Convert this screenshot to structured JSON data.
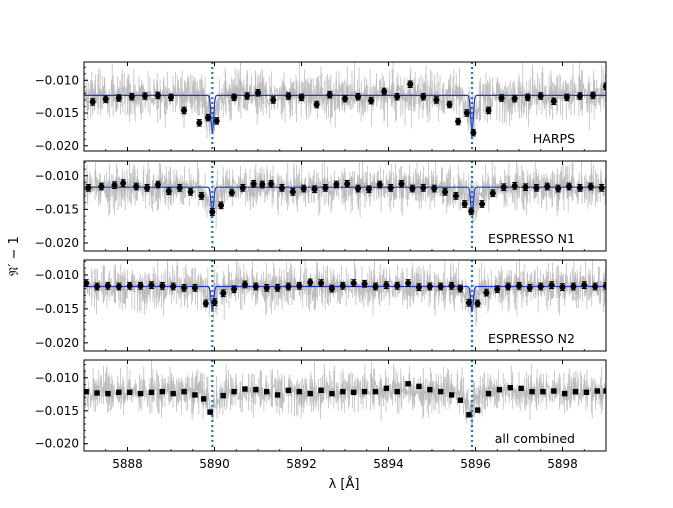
{
  "chart_data": {
    "type": "line",
    "colors": {
      "noisy_data": "#b8b8b8",
      "binned_points": "#000000",
      "model_line": "#1f35d6",
      "line_markers": "#1f77b4",
      "axes": "#000000"
    },
    "xlabel": "λ [Å]",
    "ylabel": "𝔑′ − 1",
    "xlim": [
      5887.0,
      5899.0
    ],
    "x_ticks": [
      "5888",
      "5890",
      "5892",
      "5894",
      "5896",
      "5898"
    ],
    "x_tick_values": [
      5888,
      5890,
      5892,
      5894,
      5896,
      5898
    ],
    "vertical_lines_x": [
      5889.95,
      5895.92
    ],
    "shared_x": true,
    "panels": [
      {
        "label": "HARPS",
        "ylim": [
          -0.0208,
          -0.0072
        ],
        "y_ticks": [
          "−0.010",
          "−0.015",
          "−0.020"
        ],
        "y_tick_values": [
          -0.01,
          -0.015,
          -0.02
        ],
        "continuum": -0.0123,
        "line_depth": 0.0056,
        "marker": "circle",
        "errorbars": true,
        "has_model": true,
        "binned_points": [
          [
            5887.2,
            -0.0133
          ],
          [
            5887.5,
            -0.0129
          ],
          [
            5887.8,
            -0.0127
          ],
          [
            5888.1,
            -0.0125
          ],
          [
            5888.4,
            -0.0124
          ],
          [
            5888.7,
            -0.0123
          ],
          [
            5889.0,
            -0.0126
          ],
          [
            5889.3,
            -0.0146
          ],
          [
            5889.65,
            -0.0165
          ],
          [
            5889.85,
            -0.0157
          ],
          [
            5890.05,
            -0.0162
          ],
          [
            5890.45,
            -0.0126
          ],
          [
            5890.75,
            -0.0124
          ],
          [
            5891.0,
            -0.0119
          ],
          [
            5891.35,
            -0.013
          ],
          [
            5891.7,
            -0.0124
          ],
          [
            5892.0,
            -0.0126
          ],
          [
            5892.35,
            -0.0137
          ],
          [
            5892.65,
            -0.0122
          ],
          [
            5893.0,
            -0.0128
          ],
          [
            5893.3,
            -0.0125
          ],
          [
            5893.6,
            -0.0131
          ],
          [
            5893.9,
            -0.0117
          ],
          [
            5894.2,
            -0.0125
          ],
          [
            5894.5,
            -0.0106
          ],
          [
            5894.8,
            -0.0125
          ],
          [
            5895.1,
            -0.013
          ],
          [
            5895.4,
            -0.0137
          ],
          [
            5895.6,
            -0.0163
          ],
          [
            5895.8,
            -0.015
          ],
          [
            5895.95,
            -0.018
          ],
          [
            5896.3,
            -0.0146
          ],
          [
            5896.6,
            -0.0127
          ],
          [
            5896.9,
            -0.0128
          ],
          [
            5897.2,
            -0.0126
          ],
          [
            5897.5,
            -0.0124
          ],
          [
            5897.8,
            -0.0132
          ],
          [
            5898.1,
            -0.0126
          ],
          [
            5898.4,
            -0.0124
          ],
          [
            5898.7,
            -0.0123
          ],
          [
            5899.0,
            -0.0109
          ]
        ]
      },
      {
        "label": "ESPRESSO N1",
        "ylim": [
          -0.0212,
          -0.0078
        ],
        "y_ticks": [
          "−0.010",
          "−0.015",
          "−0.020"
        ],
        "y_tick_values": [
          -0.01,
          -0.015,
          -0.02
        ],
        "continuum": -0.0117,
        "line_depth": 0.004,
        "marker": "circle",
        "errorbars": true,
        "has_model": true,
        "binned_points": [
          [
            5887.1,
            -0.0118
          ],
          [
            5887.4,
            -0.0116
          ],
          [
            5887.7,
            -0.0114
          ],
          [
            5887.9,
            -0.0111
          ],
          [
            5888.2,
            -0.0116
          ],
          [
            5888.45,
            -0.0118
          ],
          [
            5888.7,
            -0.0113
          ],
          [
            5888.95,
            -0.0123
          ],
          [
            5889.2,
            -0.0118
          ],
          [
            5889.45,
            -0.0124
          ],
          [
            5889.7,
            -0.013
          ],
          [
            5889.95,
            -0.0154
          ],
          [
            5890.15,
            -0.0144
          ],
          [
            5890.4,
            -0.0125
          ],
          [
            5890.65,
            -0.0118
          ],
          [
            5890.9,
            -0.0112
          ],
          [
            5891.1,
            -0.0113
          ],
          [
            5891.3,
            -0.0112
          ],
          [
            5891.55,
            -0.0118
          ],
          [
            5891.8,
            -0.0124
          ],
          [
            5892.05,
            -0.0119
          ],
          [
            5892.3,
            -0.012
          ],
          [
            5892.55,
            -0.0118
          ],
          [
            5892.8,
            -0.0113
          ],
          [
            5893.05,
            -0.0112
          ],
          [
            5893.3,
            -0.0119
          ],
          [
            5893.55,
            -0.012
          ],
          [
            5893.8,
            -0.0113
          ],
          [
            5894.05,
            -0.0118
          ],
          [
            5894.3,
            -0.0112
          ],
          [
            5894.55,
            -0.0119
          ],
          [
            5894.8,
            -0.0118
          ],
          [
            5895.05,
            -0.0119
          ],
          [
            5895.3,
            -0.0124
          ],
          [
            5895.55,
            -0.013
          ],
          [
            5895.75,
            -0.0142
          ],
          [
            5895.9,
            -0.0153
          ],
          [
            5896.15,
            -0.0142
          ],
          [
            5896.4,
            -0.0126
          ],
          [
            5896.65,
            -0.0117
          ],
          [
            5896.9,
            -0.0115
          ],
          [
            5897.15,
            -0.0117
          ],
          [
            5897.4,
            -0.0118
          ],
          [
            5897.65,
            -0.0116
          ],
          [
            5897.9,
            -0.0119
          ],
          [
            5898.15,
            -0.0116
          ],
          [
            5898.4,
            -0.0118
          ],
          [
            5898.65,
            -0.0116
          ],
          [
            5898.9,
            -0.0118
          ]
        ]
      },
      {
        "label": "ESPRESSO N2",
        "ylim": [
          -0.0212,
          -0.0078
        ],
        "y_ticks": [
          "−0.010",
          "−0.015",
          "−0.020"
        ],
        "y_tick_values": [
          -0.01,
          -0.015,
          -0.02
        ],
        "continuum": -0.0117,
        "line_depth": 0.0036,
        "marker": "circle",
        "errorbars": true,
        "has_model": true,
        "binned_points": [
          [
            5887.05,
            -0.0112
          ],
          [
            5887.3,
            -0.0117
          ],
          [
            5887.55,
            -0.0116
          ],
          [
            5887.8,
            -0.0117
          ],
          [
            5888.05,
            -0.0116
          ],
          [
            5888.3,
            -0.0116
          ],
          [
            5888.55,
            -0.0115
          ],
          [
            5888.8,
            -0.0116
          ],
          [
            5889.05,
            -0.0117
          ],
          [
            5889.3,
            -0.0119
          ],
          [
            5889.55,
            -0.0119
          ],
          [
            5889.8,
            -0.0142
          ],
          [
            5890.0,
            -0.014
          ],
          [
            5890.2,
            -0.0127
          ],
          [
            5890.45,
            -0.0121
          ],
          [
            5890.7,
            -0.0114
          ],
          [
            5890.95,
            -0.0117
          ],
          [
            5891.2,
            -0.0119
          ],
          [
            5891.45,
            -0.0119
          ],
          [
            5891.7,
            -0.0117
          ],
          [
            5891.95,
            -0.0116
          ],
          [
            5892.2,
            -0.0111
          ],
          [
            5892.45,
            -0.0112
          ],
          [
            5892.7,
            -0.012
          ],
          [
            5892.95,
            -0.0116
          ],
          [
            5893.2,
            -0.0112
          ],
          [
            5893.45,
            -0.0113
          ],
          [
            5893.7,
            -0.0117
          ],
          [
            5893.95,
            -0.0115
          ],
          [
            5894.2,
            -0.0116
          ],
          [
            5894.45,
            -0.0112
          ],
          [
            5894.7,
            -0.0118
          ],
          [
            5894.95,
            -0.0117
          ],
          [
            5895.2,
            -0.0117
          ],
          [
            5895.45,
            -0.0116
          ],
          [
            5895.65,
            -0.012
          ],
          [
            5895.85,
            -0.0141
          ],
          [
            5896.05,
            -0.0142
          ],
          [
            5896.25,
            -0.0126
          ],
          [
            5896.5,
            -0.0121
          ],
          [
            5896.75,
            -0.0117
          ],
          [
            5897.0,
            -0.0116
          ],
          [
            5897.25,
            -0.0119
          ],
          [
            5897.5,
            -0.0117
          ],
          [
            5897.75,
            -0.0115
          ],
          [
            5898.0,
            -0.0118
          ],
          [
            5898.25,
            -0.0117
          ],
          [
            5898.5,
            -0.0115
          ],
          [
            5898.75,
            -0.0117
          ],
          [
            5899.0,
            -0.0116
          ]
        ]
      },
      {
        "label": "all combined",
        "ylim": [
          -0.0211,
          -0.0073
        ],
        "y_ticks": [
          "−0.010",
          "−0.015",
          "−0.020"
        ],
        "y_tick_values": [
          -0.01,
          -0.015,
          -0.02
        ],
        "continuum": -0.012,
        "line_depth": 0,
        "marker": "square",
        "errorbars": false,
        "has_model": false,
        "binned_points": [
          [
            5887.05,
            -0.0121
          ],
          [
            5887.3,
            -0.0123
          ],
          [
            5887.55,
            -0.0124
          ],
          [
            5887.8,
            -0.0122
          ],
          [
            5888.05,
            -0.0122
          ],
          [
            5888.3,
            -0.0124
          ],
          [
            5888.55,
            -0.0122
          ],
          [
            5888.8,
            -0.0121
          ],
          [
            5889.05,
            -0.0124
          ],
          [
            5889.3,
            -0.0121
          ],
          [
            5889.55,
            -0.0126
          ],
          [
            5889.75,
            -0.0132
          ],
          [
            5889.9,
            -0.0152
          ],
          [
            5890.2,
            -0.0127
          ],
          [
            5890.45,
            -0.0121
          ],
          [
            5890.7,
            -0.0117
          ],
          [
            5890.95,
            -0.0118
          ],
          [
            5891.2,
            -0.0121
          ],
          [
            5891.45,
            -0.0126
          ],
          [
            5891.7,
            -0.0119
          ],
          [
            5891.95,
            -0.0121
          ],
          [
            5892.2,
            -0.0124
          ],
          [
            5892.45,
            -0.0119
          ],
          [
            5892.7,
            -0.0124
          ],
          [
            5892.95,
            -0.0121
          ],
          [
            5893.2,
            -0.0122
          ],
          [
            5893.45,
            -0.0121
          ],
          [
            5893.7,
            -0.0121
          ],
          [
            5893.95,
            -0.0116
          ],
          [
            5894.2,
            -0.0121
          ],
          [
            5894.45,
            -0.0109
          ],
          [
            5894.7,
            -0.0113
          ],
          [
            5894.95,
            -0.0118
          ],
          [
            5895.2,
            -0.0121
          ],
          [
            5895.45,
            -0.0126
          ],
          [
            5895.65,
            -0.0134
          ],
          [
            5895.85,
            -0.0156
          ],
          [
            5896.05,
            -0.0149
          ],
          [
            5896.3,
            -0.0124
          ],
          [
            5896.55,
            -0.0118
          ],
          [
            5896.8,
            -0.0115
          ],
          [
            5897.05,
            -0.0116
          ],
          [
            5897.3,
            -0.0121
          ],
          [
            5897.55,
            -0.0121
          ],
          [
            5897.8,
            -0.012
          ],
          [
            5898.05,
            -0.0124
          ],
          [
            5898.3,
            -0.0121
          ],
          [
            5898.55,
            -0.0122
          ],
          [
            5898.8,
            -0.012
          ],
          [
            5899.0,
            -0.012
          ]
        ]
      }
    ]
  }
}
